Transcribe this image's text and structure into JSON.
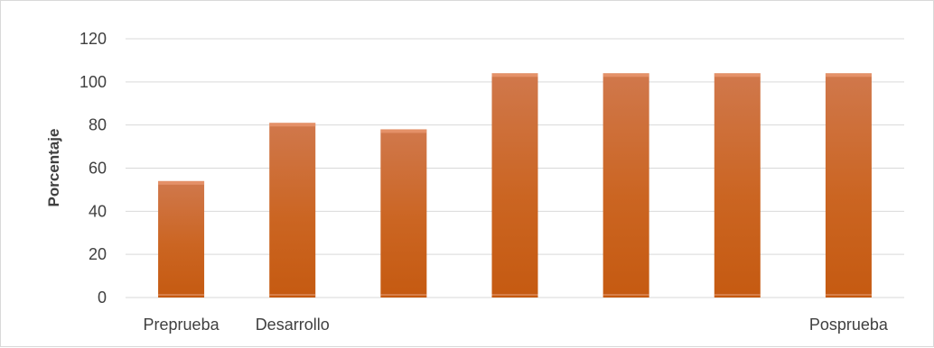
{
  "chart_data": {
    "type": "bar",
    "title": "",
    "xlabel": "",
    "ylabel": "Porcentaje",
    "ylim": [
      0,
      120
    ],
    "yticks": [
      0,
      20,
      40,
      60,
      80,
      100,
      120
    ],
    "grid": true,
    "legend": "none",
    "categories": [
      "Preprueba",
      "Desarrollo",
      "",
      "",
      "",
      "",
      "Posprueba"
    ],
    "values": [
      54,
      81,
      78,
      104,
      104,
      104,
      104
    ],
    "colors": {
      "bar_top": "#d0784c",
      "bar_bottom": "#c55a11",
      "highlight": "#f4a582",
      "gridline": "#d9d9d9",
      "axis_text": "#404040"
    }
  }
}
